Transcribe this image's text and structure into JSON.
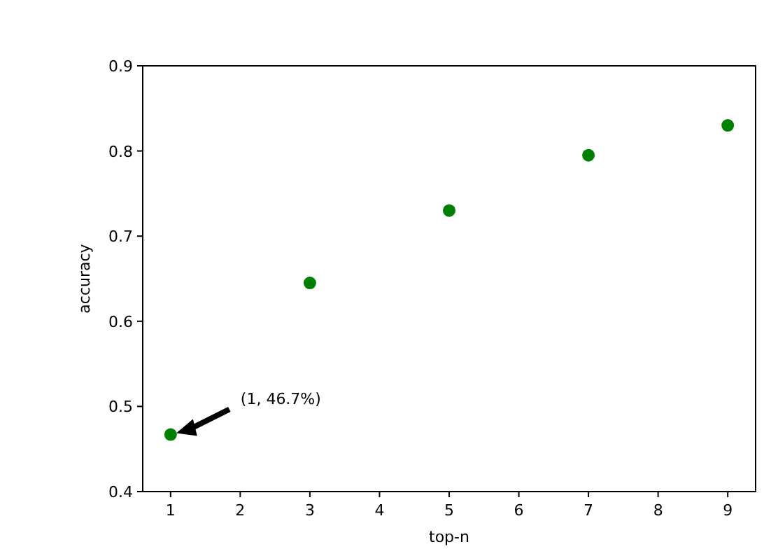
{
  "chart_data": {
    "type": "scatter",
    "xlabel": "top-n",
    "ylabel": "accuracy",
    "x": [
      1,
      3,
      5,
      7,
      9
    ],
    "series": [
      {
        "color": "#008000",
        "values": [
          0.467,
          0.645,
          0.73,
          0.795,
          0.83
        ]
      }
    ],
    "xlim": [
      0.6,
      9.4
    ],
    "xticks": [
      1,
      2,
      3,
      4,
      5,
      6,
      7,
      8,
      9
    ],
    "ylim": [
      0.4,
      0.9
    ],
    "yticks": [
      {
        "value": 0.4,
        "label": "0.4"
      },
      {
        "value": 0.5,
        "label": "0.5"
      },
      {
        "value": 0.6,
        "label": "0.6"
      },
      {
        "value": 0.7,
        "label": "0.7"
      },
      {
        "value": 0.8,
        "label": "0.8"
      },
      {
        "value": 0.9,
        "label": "0.9"
      }
    ],
    "marker": "circle",
    "grid": false,
    "annotations": [
      "(1, 46.7%)"
    ]
  }
}
